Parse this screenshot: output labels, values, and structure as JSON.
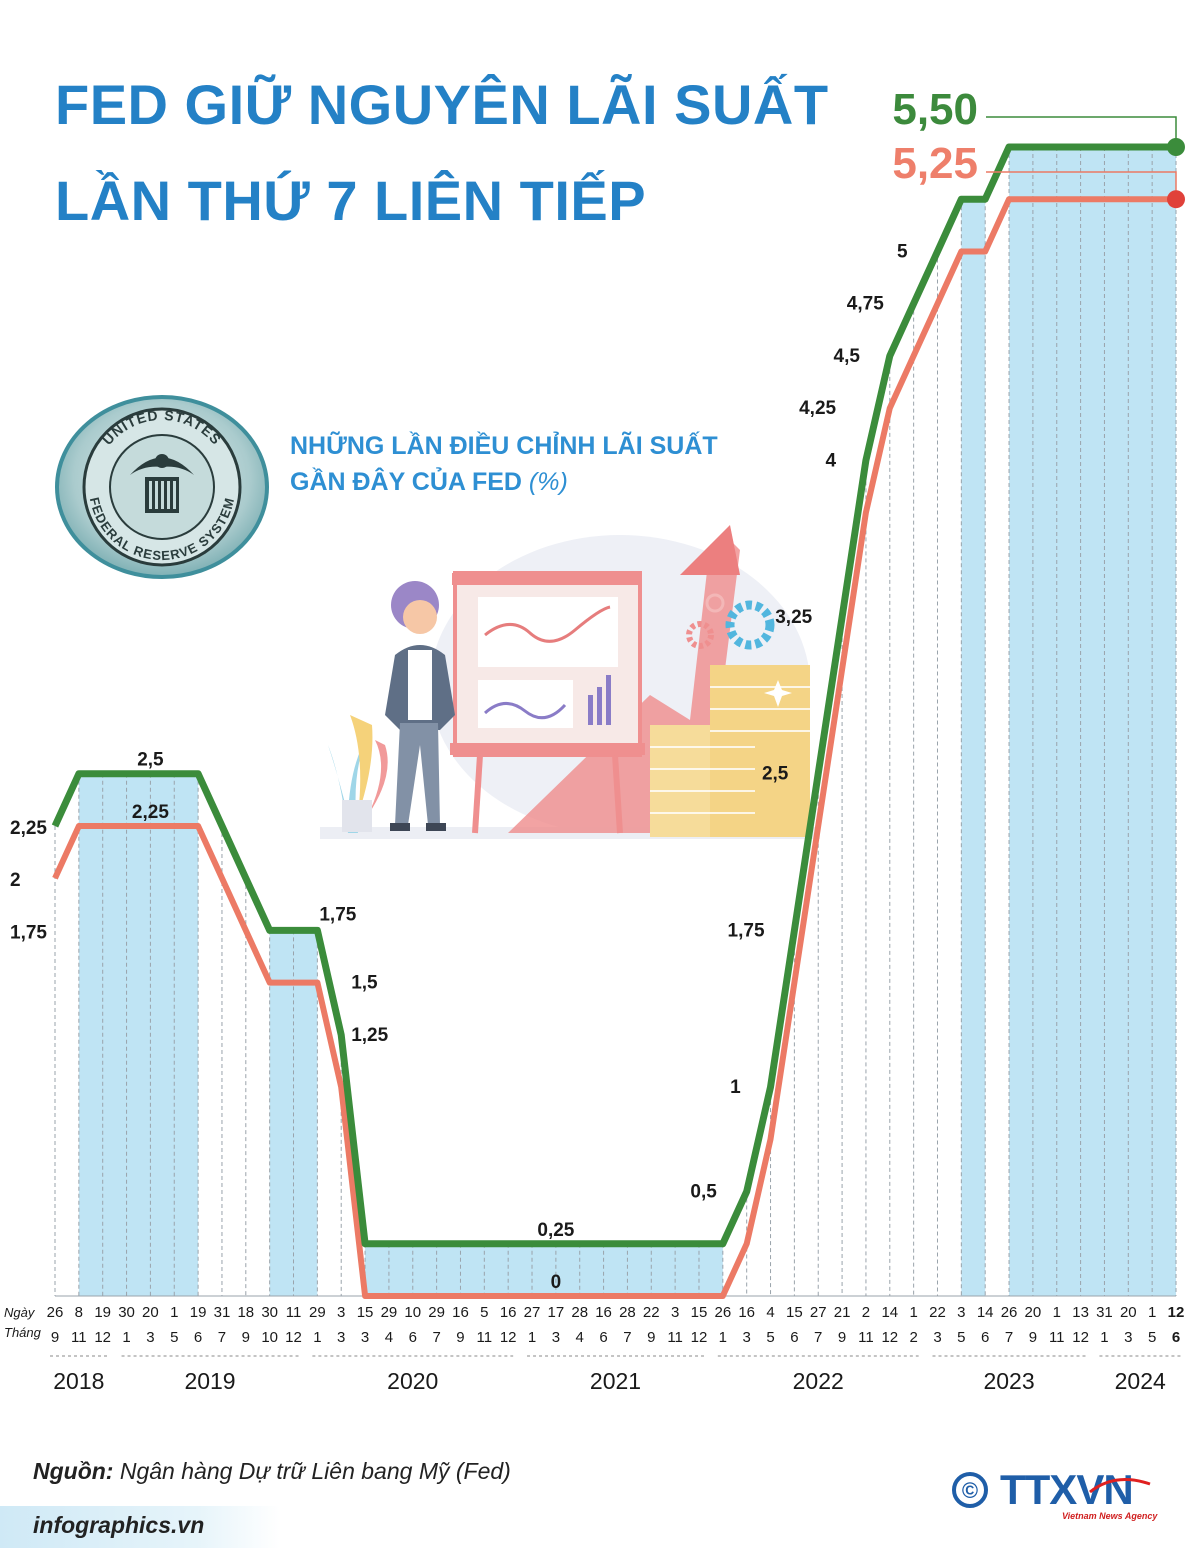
{
  "title": {
    "line1": "FED GIỮ NGUYÊN LÃI SUẤT",
    "line2": "LẦN THỨ 7 LIÊN TIẾP"
  },
  "subtitle": {
    "line1": "NHỮNG LẦN ĐIỀU CHỈNH LÃI SUẤT",
    "line2_main": "GẦN ĐÂY CỦA FED",
    "line2_unit": "(%)"
  },
  "seal": {
    "text": "UNITED STATES FEDERAL RESERVE SYSTEM"
  },
  "axis": {
    "day_label": "Ngày",
    "month_label": "Tháng"
  },
  "colors": {
    "upper": "#3b8c3b",
    "lower": "#ec7a65",
    "band": "#bfe4f4",
    "title": "#2481c6",
    "value_upper": "#3c8a3c",
    "value_lower": "#ee7f6b"
  },
  "chart_data": {
    "type": "line",
    "ylim": [
      0,
      5.5
    ],
    "dates": [
      {
        "day": "26",
        "month": "9"
      },
      {
        "day": "8",
        "month": "11"
      },
      {
        "day": "19",
        "month": "12"
      },
      {
        "day": "30",
        "month": "1"
      },
      {
        "day": "20",
        "month": "3"
      },
      {
        "day": "1",
        "month": "5"
      },
      {
        "day": "19",
        "month": "6"
      },
      {
        "day": "31",
        "month": "7"
      },
      {
        "day": "18",
        "month": "9"
      },
      {
        "day": "30",
        "month": "10"
      },
      {
        "day": "11",
        "month": "12"
      },
      {
        "day": "29",
        "month": "1"
      },
      {
        "day": "3",
        "month": "3"
      },
      {
        "day": "15",
        "month": "3"
      },
      {
        "day": "29",
        "month": "4"
      },
      {
        "day": "10",
        "month": "6"
      },
      {
        "day": "29",
        "month": "7"
      },
      {
        "day": "16",
        "month": "9"
      },
      {
        "day": "5",
        "month": "11"
      },
      {
        "day": "16",
        "month": "12"
      },
      {
        "day": "27",
        "month": "1"
      },
      {
        "day": "17",
        "month": "3"
      },
      {
        "day": "28",
        "month": "4"
      },
      {
        "day": "16",
        "month": "6"
      },
      {
        "day": "28",
        "month": "7"
      },
      {
        "day": "22",
        "month": "9"
      },
      {
        "day": "3",
        "month": "11"
      },
      {
        "day": "15",
        "month": "12"
      },
      {
        "day": "26",
        "month": "1"
      },
      {
        "day": "16",
        "month": "3"
      },
      {
        "day": "4",
        "month": "5"
      },
      {
        "day": "15",
        "month": "6"
      },
      {
        "day": "27",
        "month": "7"
      },
      {
        "day": "21",
        "month": "9"
      },
      {
        "day": "2",
        "month": "11"
      },
      {
        "day": "14",
        "month": "12"
      },
      {
        "day": "1",
        "month": "2"
      },
      {
        "day": "22",
        "month": "3"
      },
      {
        "day": "3",
        "month": "5"
      },
      {
        "day": "14",
        "month": "6"
      },
      {
        "day": "26",
        "month": "7"
      },
      {
        "day": "20",
        "month": "9"
      },
      {
        "day": "1",
        "month": "11"
      },
      {
        "day": "13",
        "month": "12"
      },
      {
        "day": "31",
        "month": "1"
      },
      {
        "day": "20",
        "month": "3"
      },
      {
        "day": "1",
        "month": "5"
      },
      {
        "day": "12",
        "month": "6"
      }
    ],
    "years": [
      {
        "label": "2018",
        "from": 0,
        "to": 2
      },
      {
        "label": "2019",
        "from": 3,
        "to": 10
      },
      {
        "label": "2020",
        "from": 11,
        "to": 19
      },
      {
        "label": "2021",
        "from": 20,
        "to": 27
      },
      {
        "label": "2022",
        "from": 28,
        "to": 36
      },
      {
        "label": "2023",
        "from": 37,
        "to": 43
      },
      {
        "label": "2024",
        "from": 44,
        "to": 47
      }
    ],
    "series": [
      {
        "values": [
          2.25,
          2.5,
          2.5,
          2.5,
          2.5,
          2.5,
          2.5,
          2.25,
          2,
          1.75,
          1.75,
          1.75,
          1.25,
          0.25,
          0.25,
          0.25,
          0.25,
          0.25,
          0.25,
          0.25,
          0.25,
          0.25,
          0.25,
          0.25,
          0.25,
          0.25,
          0.25,
          0.25,
          0.25,
          0.5,
          1,
          1.75,
          2.5,
          3.25,
          4,
          4.5,
          4.75,
          5,
          5.25,
          5.25,
          5.5,
          5.5,
          5.5,
          5.5,
          5.5,
          5.5,
          5.5,
          5.5
        ]
      },
      {
        "values": [
          2,
          2.25,
          2.25,
          2.25,
          2.25,
          2.25,
          2.25,
          2,
          1.75,
          1.5,
          1.5,
          1.5,
          1,
          0,
          0,
          0,
          0,
          0,
          0,
          0,
          0,
          0,
          0,
          0,
          0,
          0,
          0,
          0,
          0,
          0.25,
          0.75,
          1.5,
          2.25,
          3,
          3.75,
          4.25,
          4.5,
          4.75,
          5,
          5,
          5.25,
          5.25,
          5.25,
          5.25,
          5.25,
          5.25,
          5.25,
          5.25
        ]
      }
    ],
    "labels": [
      {
        "text": "2,25",
        "i": 0,
        "v": 2.25
      },
      {
        "text": "2",
        "i": 0,
        "v": 2
      },
      {
        "text": "1,75",
        "i": 0,
        "v": 1.75
      },
      {
        "text": "2,5",
        "i": 4,
        "v": 2.5
      },
      {
        "text": "2,25",
        "i": 4,
        "v": 2.25
      },
      {
        "text": "1,75",
        "i": 11,
        "v": 1.75
      },
      {
        "text": "1,5",
        "i": 12,
        "v": 1.5
      },
      {
        "text": "1,25",
        "i": 12,
        "v": 1.25
      },
      {
        "text": "0,25",
        "i": 21,
        "v": 0.25
      },
      {
        "text": "0",
        "i": 21,
        "v": 0
      },
      {
        "text": "0,5",
        "i": 28,
        "v": 0.5
      },
      {
        "text": "1",
        "i": 29,
        "v": 1
      },
      {
        "text": "1,75",
        "i": 30,
        "v": 1.75
      },
      {
        "text": "2,5",
        "i": 31,
        "v": 2.5
      },
      {
        "text": "3,25",
        "i": 32,
        "v": 3.25
      },
      {
        "text": "4",
        "i": 33,
        "v": 4
      },
      {
        "text": "4,25",
        "i": 33,
        "v": 4.25
      },
      {
        "text": "4,5",
        "i": 34,
        "v": 4.5
      },
      {
        "text": "4,75",
        "i": 35,
        "v": 4.75
      },
      {
        "text": "5",
        "i": 36,
        "v": 5
      }
    ],
    "final_labels": {
      "upper": "5,50",
      "lower": "5,25"
    }
  },
  "source": {
    "label": "Nguồn:",
    "text": "Ngân hàng Dự trữ Liên bang Mỹ (Fed)"
  },
  "website": "infographics.vn",
  "logo": {
    "copyright": "©",
    "name": "TTXVN",
    "tagline": "Vietnam News Agency"
  }
}
